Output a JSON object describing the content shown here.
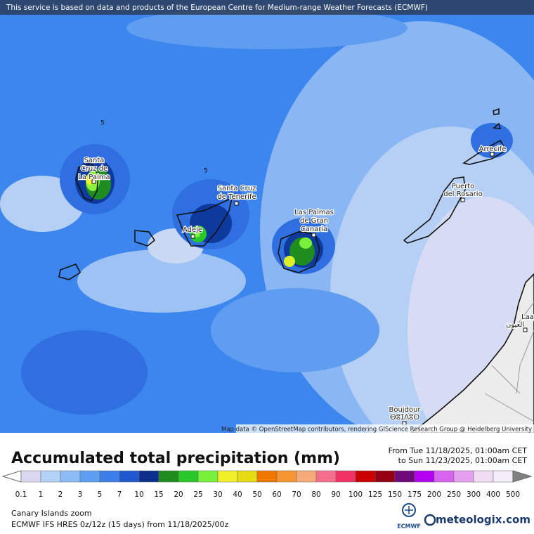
{
  "banner": "This service is based on data and products of the European Centre for Medium-range Weather Forecasts (ECMWF)",
  "map": {
    "places": [
      {
        "lines": [
          "Santa",
          "Cruz de",
          "La Palma"
        ]
      },
      {
        "lines": [
          "Santa Cruz",
          "de Tenerife"
        ]
      },
      {
        "lines": [
          "Las Palmas",
          "de Gran",
          "Canaria"
        ]
      },
      {
        "lines": [
          "Adeje"
        ]
      },
      {
        "lines": [
          "Puerto",
          "del Rosario"
        ]
      },
      {
        "lines": [
          "Arrecife"
        ]
      },
      {
        "lines": [
          "Laayoune",
          "العيون"
        ]
      },
      {
        "lines": [
          "Boujdour",
          "ⴱⵓⵊⴷⵓⵔ"
        ]
      }
    ],
    "contour_labels": [
      "5",
      "5"
    ],
    "attribution": "Map data © OpenStreetMap contributors, rendering GIScience Research Group @ Heidelberg University"
  },
  "legend": {
    "title": "Accumulated total precipitation (mm)",
    "from": "From Tue 11/18/2025, 01:00am CET",
    "to": "to Sun 11/23/2025, 01:00am CET",
    "levels": [
      0.1,
      1,
      2,
      3,
      5,
      7,
      10,
      15,
      20,
      25,
      30,
      40,
      50,
      60,
      70,
      80,
      90,
      100,
      125,
      150,
      175,
      200,
      250,
      300,
      400,
      500
    ],
    "colors": [
      "#ffffff",
      "#d8d8f0",
      "#b4d2f8",
      "#8cbcf5",
      "#5c9ef0",
      "#3c7fe8",
      "#2058d0",
      "#0c2e8c",
      "#1e8c1e",
      "#28c828",
      "#78f03c",
      "#f0f028",
      "#e6dc14",
      "#f07800",
      "#f59632",
      "#f5aa78",
      "#f56e8c",
      "#f03264",
      "#c80000",
      "#960014",
      "#6e0a7a",
      "#b400f0",
      "#d764f0",
      "#e6a0f0",
      "#f0dcf5",
      "#f5eef8",
      "#c8c8c8",
      "#808080"
    ]
  },
  "footer": {
    "region": "Canary Islands zoom",
    "model": "ECMWF IFS HRES 0z/12z (15 days) from  11/18/2025/00z",
    "logos": [
      "ECMWF",
      "meteologix.com"
    ]
  }
}
